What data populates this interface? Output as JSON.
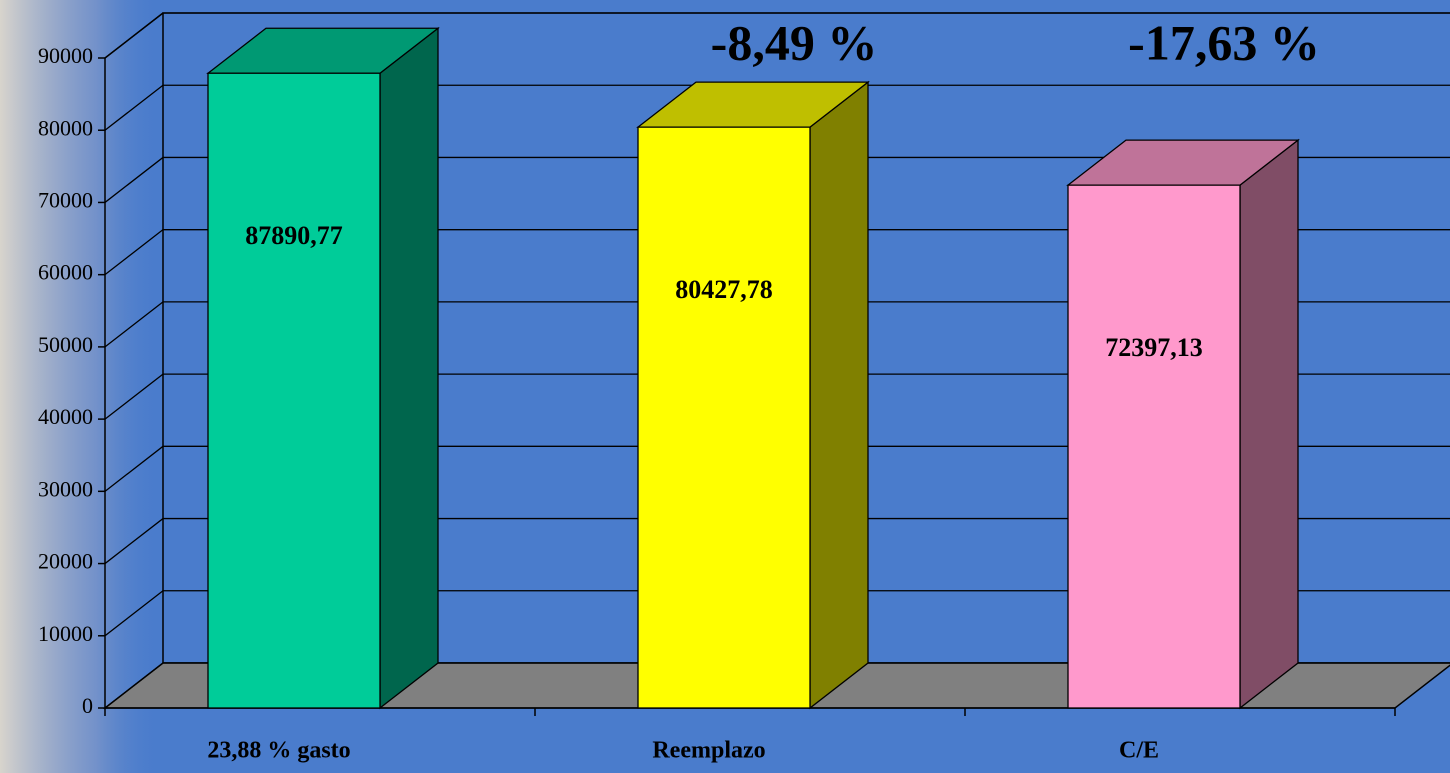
{
  "chart_data": {
    "type": "bar3d",
    "categories": [
      "23,88 % gasto",
      "Reemplazo",
      "C/E"
    ],
    "values": [
      87890.77,
      80427.78,
      72397.13
    ],
    "value_labels": [
      "87890,77",
      "80427,78",
      "72397,13"
    ],
    "annotations": [
      null,
      "-8,49 %",
      "-17,63 %"
    ],
    "colors": [
      "#00cc99",
      "#ffff00",
      "#ff99cc"
    ],
    "ylim": [
      0,
      90000
    ],
    "yticks": [
      0,
      10000,
      20000,
      30000,
      40000,
      50000,
      60000,
      70000,
      80000,
      90000
    ],
    "grid": true
  }
}
